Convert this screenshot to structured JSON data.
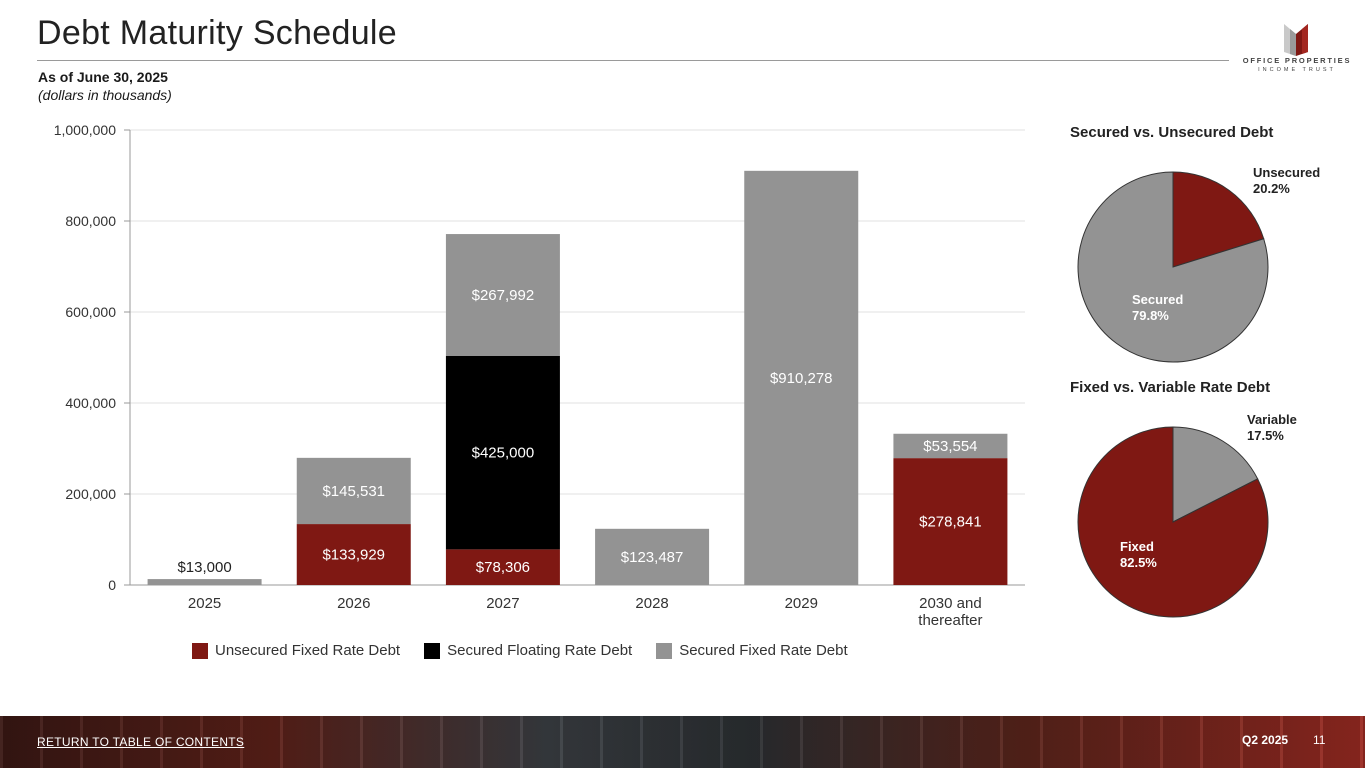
{
  "header": {
    "title": "Debt Maturity Schedule",
    "as_of": "As of June 30, 2025",
    "units": "(dollars in thousands)"
  },
  "logo": {
    "name": "OFFICE PROPERTIES",
    "sub": "INCOME TRUST"
  },
  "colors": {
    "unsecured_fixed": "#7f1813",
    "secured_floating": "#000000",
    "secured_fixed": "#939393"
  },
  "chart_data": [
    {
      "type": "bar",
      "stacked": true,
      "categories": [
        "2025",
        "2026",
        "2027",
        "2028",
        "2029",
        "2030 and\nthereafter"
      ],
      "series": [
        {
          "name": "Unsecured Fixed Rate Debt",
          "values": [
            0,
            133929,
            78306,
            0,
            0,
            278841
          ],
          "labels": [
            "",
            "$133,929",
            "$78,306",
            "",
            "",
            "$278,841"
          ],
          "color": "#7f1813"
        },
        {
          "name": "Secured Floating Rate Debt",
          "values": [
            0,
            0,
            425000,
            0,
            0,
            0
          ],
          "labels": [
            "",
            "",
            "$425,000",
            "",
            "",
            ""
          ],
          "color": "#000000"
        },
        {
          "name": "Secured Fixed Rate Debt",
          "values": [
            13000,
            145531,
            267992,
            123487,
            910278,
            53554
          ],
          "labels": [
            "$13,000",
            "$145,531",
            "$267,992",
            "$123,487",
            "$910,278",
            "$53,554"
          ],
          "color": "#939393"
        }
      ],
      "ylim": [
        0,
        1000000
      ],
      "yticks": [
        "0",
        "200,000",
        "400,000",
        "600,000",
        "800,000",
        "1,000,000"
      ],
      "grid": true,
      "legend": "bottom"
    },
    {
      "type": "pie",
      "title": "Secured vs. Unsecured Debt",
      "slices": [
        {
          "name": "Unsecured",
          "value": 20.2,
          "label": "20.2%",
          "color": "#7f1813"
        },
        {
          "name": "Secured",
          "value": 79.8,
          "label": "79.8%",
          "color": "#939393"
        }
      ]
    },
    {
      "type": "pie",
      "title": "Fixed vs. Variable Rate Debt",
      "slices": [
        {
          "name": "Variable",
          "value": 17.5,
          "label": "17.5%",
          "color": "#939393"
        },
        {
          "name": "Fixed",
          "value": 82.5,
          "label": "82.5%",
          "color": "#7f1813"
        }
      ]
    }
  ],
  "footer": {
    "link": "RETURN TO TABLE OF CONTENTS",
    "quarter": "Q2 2025",
    "page": "11"
  }
}
